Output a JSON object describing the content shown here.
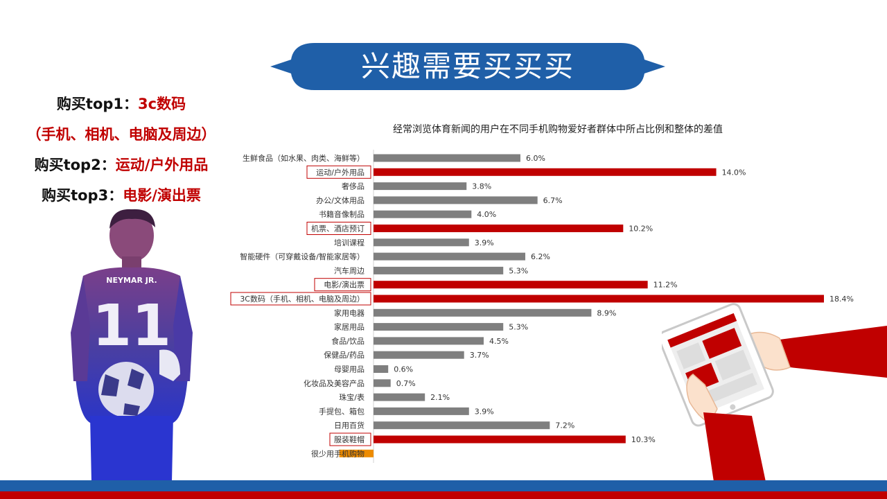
{
  "banner": {
    "title": "兴趣需要买买买"
  },
  "left": {
    "line1_black": "购买top1：",
    "line1_red": "3c数码",
    "line2_red": "（手机、相机、电脑及周边）",
    "line3_black": "购买top2：",
    "line3_red": "运动/户外用品",
    "line4_black": "购买top3：",
    "line4_red": "电影/演出票",
    "jersey_name": "NEYMAR JR.",
    "jersey_number": "11"
  },
  "chart_data": {
    "type": "bar",
    "orientation": "horizontal",
    "title": "经常浏览体育新闻的用户在不同手机购物爱好者群体中所占比例和整体的差值",
    "categories": [
      "生鲜食品（如水果、肉类、海鲜等）",
      "运动/户外用品",
      "奢侈品",
      "办公/文体用品",
      "书籍音像制品",
      "机票、酒店预订",
      "培训课程",
      "智能硬件（可穿戴设备/智能家居等）",
      "汽车周边",
      "电影/演出票",
      "3C数码（手机、相机、电脑及周边）",
      "家用电器",
      "家居用品",
      "食品/饮品",
      "保健品/药品",
      "母婴用品",
      "化妆品及美容产品",
      "珠宝/表",
      "手提包、箱包",
      "日用百货",
      "服装鞋帽",
      "很少用手机购物"
    ],
    "values": [
      6.0,
      14.0,
      3.8,
      6.7,
      4.0,
      10.2,
      3.9,
      6.2,
      5.3,
      11.2,
      18.4,
      8.9,
      5.3,
      4.5,
      3.7,
      0.6,
      0.7,
      2.1,
      3.9,
      7.2,
      10.3,
      -1.4
    ],
    "value_labels": [
      "6.0%",
      "14.0%",
      "3.8%",
      "6.7%",
      "4.0%",
      "10.2%",
      "3.9%",
      "6.2%",
      "5.3%",
      "11.2%",
      "18.4%",
      "8.9%",
      "5.3%",
      "4.5%",
      "3.7%",
      "0.6%",
      "0.7%",
      "2.1%",
      "3.9%",
      "7.2%",
      "10.3%",
      ""
    ],
    "highlighted": [
      "运动/户外用品",
      "机票、酒店预订",
      "电影/演出票",
      "3C数码（手机、相机、电脑及周边）",
      "服装鞋帽"
    ],
    "colors": {
      "normal": "#7f7f7f",
      "highlight": "#c00000",
      "negative": "#ed8b00"
    },
    "xlim": [
      -1.4,
      18.4
    ]
  },
  "theme": {
    "blue": "#1f5fa8",
    "red": "#c00000",
    "gray": "#7f7f7f"
  }
}
